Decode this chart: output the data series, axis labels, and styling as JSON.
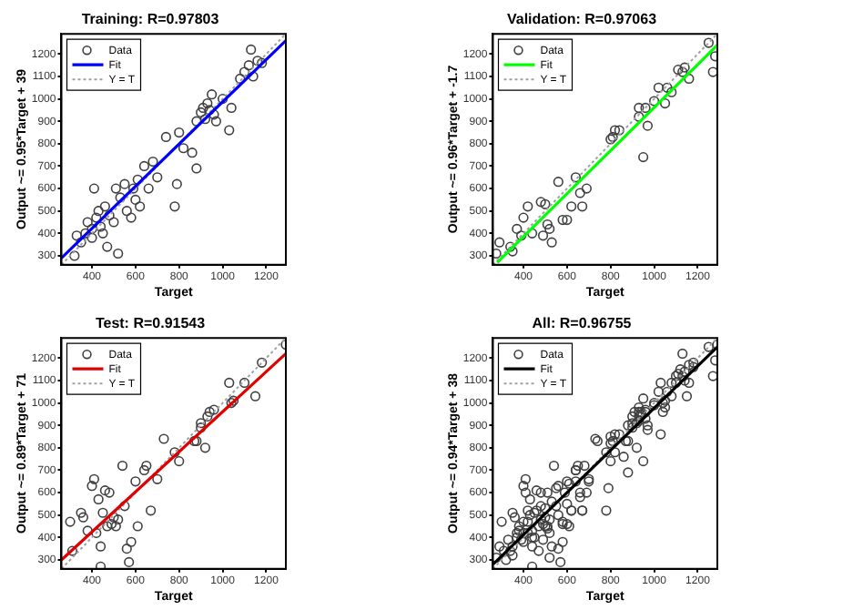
{
  "chart_data": [
    {
      "type": "scatter",
      "title": "Training: R=0.97803",
      "xlabel": "Target",
      "ylabel": "Output ~= 0.95*Target + 39",
      "xlim": [
        260,
        1290
      ],
      "ylim": [
        260,
        1290
      ],
      "xticks": [
        400,
        600,
        800,
        1000,
        1200
      ],
      "yticks": [
        300,
        400,
        500,
        600,
        700,
        800,
        900,
        1000,
        1100,
        1200
      ],
      "legend": "top left",
      "series": [
        {
          "name": "Data",
          "type": "scatter",
          "marker": "circle",
          "color": "#404040",
          "x": [
            320,
            330,
            350,
            370,
            380,
            400,
            400,
            410,
            420,
            430,
            440,
            450,
            460,
            470,
            480,
            500,
            510,
            520,
            530,
            550,
            560,
            580,
            590,
            600,
            610,
            620,
            640,
            660,
            680,
            700,
            740,
            780,
            790,
            800,
            820,
            860,
            880,
            880,
            900,
            910,
            920,
            930,
            940,
            950,
            960,
            970,
            1000,
            1030,
            1040,
            1080,
            1100,
            1120,
            1130,
            1140,
            1160,
            1180
          ],
          "values": [
            300,
            390,
            360,
            400,
            450,
            420,
            380,
            600,
            470,
            500,
            430,
            400,
            520,
            340,
            480,
            450,
            600,
            310,
            560,
            620,
            500,
            470,
            600,
            550,
            640,
            520,
            700,
            600,
            720,
            650,
            830,
            520,
            620,
            850,
            780,
            760,
            690,
            900,
            940,
            960,
            910,
            980,
            950,
            1020,
            930,
            900,
            1000,
            860,
            960,
            1090,
            1120,
            1150,
            1220,
            1100,
            1170,
            1160
          ]
        },
        {
          "name": "Fit",
          "type": "line",
          "color": "#0000ff",
          "line_style": "solid",
          "x": [
            260,
            1290
          ],
          "values": [
            290,
            1260
          ]
        },
        {
          "name": "Y = T",
          "type": "line",
          "color": "#a0a0a0",
          "line_style": "dotted",
          "x": [
            260,
            1290
          ],
          "values": [
            260,
            1290
          ]
        }
      ]
    },
    {
      "type": "scatter",
      "title": "Validation: R=0.97063",
      "xlabel": "Target",
      "ylabel": "Output ~= 0.96*Target + -1.7",
      "xlim": [
        260,
        1290
      ],
      "ylim": [
        260,
        1290
      ],
      "xticks": [
        400,
        600,
        800,
        1000,
        1200
      ],
      "yticks": [
        300,
        400,
        500,
        600,
        700,
        800,
        900,
        1000,
        1100,
        1200
      ],
      "legend": "top left",
      "series": [
        {
          "name": "Data",
          "type": "scatter",
          "marker": "circle",
          "color": "#404040",
          "x": [
            275,
            290,
            340,
            350,
            370,
            390,
            400,
            420,
            440,
            480,
            490,
            500,
            510,
            520,
            530,
            560,
            580,
            600,
            620,
            640,
            660,
            670,
            690,
            800,
            810,
            820,
            840,
            930,
            930,
            950,
            960,
            970,
            1000,
            1020,
            1050,
            1060,
            1080,
            1110,
            1130,
            1140,
            1160,
            1250,
            1270,
            1280
          ],
          "values": [
            310,
            360,
            340,
            320,
            420,
            390,
            470,
            520,
            400,
            540,
            390,
            530,
            440,
            420,
            360,
            630,
            460,
            460,
            520,
            650,
            580,
            520,
            600,
            820,
            830,
            860,
            860,
            920,
            960,
            740,
            960,
            880,
            990,
            1050,
            980,
            1050,
            1030,
            1130,
            1120,
            1140,
            1090,
            1250,
            1120,
            1190
          ]
        },
        {
          "name": "Fit",
          "type": "line",
          "color": "#00ff00",
          "line_style": "solid",
          "x": [
            280,
            1290
          ],
          "values": [
            270,
            1240
          ]
        },
        {
          "name": "Y = T",
          "type": "line",
          "color": "#a0a0a0",
          "line_style": "dotted",
          "x": [
            260,
            1290
          ],
          "values": [
            260,
            1290
          ]
        }
      ]
    },
    {
      "type": "scatter",
      "title": "Test: R=0.91543",
      "xlabel": "Target",
      "ylabel": "Output ~= 0.89*Target + 71",
      "xlim": [
        260,
        1290
      ],
      "ylim": [
        260,
        1290
      ],
      "xticks": [
        400,
        600,
        800,
        1000,
        1200
      ],
      "yticks": [
        300,
        400,
        500,
        600,
        700,
        800,
        900,
        1000,
        1100,
        1200
      ],
      "legend": "top left",
      "series": [
        {
          "name": "Data",
          "type": "scatter",
          "marker": "circle",
          "color": "#404040",
          "x": [
            300,
            310,
            350,
            360,
            380,
            400,
            410,
            420,
            430,
            440,
            440,
            450,
            460,
            470,
            480,
            490,
            500,
            510,
            520,
            540,
            550,
            560,
            570,
            580,
            600,
            610,
            640,
            650,
            670,
            700,
            730,
            780,
            800,
            870,
            880,
            900,
            900,
            920,
            930,
            940,
            960,
            1030,
            1040,
            1050,
            1100,
            1150,
            1180,
            1290
          ],
          "values": [
            470,
            340,
            510,
            490,
            430,
            630,
            660,
            420,
            570,
            360,
            270,
            510,
            610,
            450,
            600,
            460,
            490,
            450,
            480,
            720,
            540,
            350,
            290,
            380,
            650,
            450,
            700,
            720,
            520,
            660,
            840,
            780,
            740,
            830,
            830,
            890,
            910,
            800,
            940,
            960,
            970,
            1090,
            1000,
            1010,
            1090,
            1030,
            1180,
            1260
          ]
        },
        {
          "name": "Fit",
          "type": "line",
          "color": "#e00000",
          "line_style": "solid",
          "x": [
            260,
            1290
          ],
          "values": [
            300,
            1220
          ]
        },
        {
          "name": "Y = T",
          "type": "line",
          "color": "#a0a0a0",
          "line_style": "dotted",
          "x": [
            260,
            1290
          ],
          "values": [
            260,
            1290
          ]
        }
      ]
    },
    {
      "type": "scatter",
      "title": "All: R=0.96755",
      "xlabel": "Target",
      "ylabel": "Output ~= 0.94*Target + 38",
      "xlim": [
        260,
        1290
      ],
      "ylim": [
        260,
        1290
      ],
      "xticks": [
        400,
        600,
        800,
        1000,
        1200
      ],
      "yticks": [
        300,
        400,
        500,
        600,
        700,
        800,
        900,
        1000,
        1100,
        1200
      ],
      "legend": "top left",
      "series": [
        {
          "name": "Data",
          "type": "scatter",
          "marker": "circle",
          "color": "#404040",
          "x": [
            320,
            330,
            350,
            370,
            380,
            400,
            400,
            410,
            420,
            430,
            440,
            450,
            460,
            470,
            480,
            500,
            510,
            520,
            530,
            550,
            560,
            580,
            590,
            600,
            610,
            620,
            640,
            660,
            680,
            700,
            740,
            780,
            790,
            800,
            820,
            860,
            880,
            880,
            900,
            910,
            920,
            930,
            940,
            950,
            960,
            970,
            1000,
            1030,
            1040,
            1080,
            1100,
            1120,
            1130,
            1140,
            1160,
            1180,
            275,
            290,
            340,
            350,
            370,
            390,
            400,
            420,
            440,
            480,
            490,
            500,
            510,
            520,
            530,
            560,
            580,
            600,
            620,
            640,
            660,
            670,
            690,
            800,
            810,
            820,
            840,
            930,
            930,
            950,
            960,
            970,
            1000,
            1020,
            1050,
            1060,
            1080,
            1110,
            1130,
            1140,
            1160,
            1250,
            1270,
            1280,
            300,
            310,
            350,
            360,
            380,
            400,
            410,
            420,
            430,
            440,
            440,
            450,
            460,
            470,
            480,
            490,
            500,
            510,
            520,
            540,
            550,
            560,
            570,
            580,
            600,
            610,
            640,
            650,
            670,
            700,
            730,
            780,
            800,
            870,
            880,
            900,
            900,
            920,
            930,
            940,
            960,
            1030,
            1040,
            1050,
            1100,
            1150,
            1180,
            1290
          ],
          "values": [
            300,
            390,
            360,
            400,
            450,
            420,
            380,
            600,
            470,
            500,
            430,
            400,
            520,
            340,
            480,
            450,
            600,
            310,
            560,
            620,
            500,
            470,
            600,
            550,
            640,
            520,
            700,
            600,
            720,
            650,
            830,
            520,
            620,
            850,
            780,
            760,
            690,
            900,
            940,
            960,
            910,
            980,
            950,
            1020,
            930,
            900,
            1000,
            860,
            960,
            1090,
            1120,
            1150,
            1220,
            1100,
            1170,
            1160,
            310,
            360,
            340,
            320,
            420,
            390,
            470,
            520,
            400,
            540,
            390,
            530,
            440,
            420,
            360,
            630,
            460,
            460,
            520,
            650,
            580,
            520,
            600,
            820,
            830,
            860,
            860,
            920,
            960,
            740,
            960,
            880,
            990,
            1050,
            980,
            1050,
            1030,
            1130,
            1120,
            1140,
            1090,
            1250,
            1120,
            1190,
            470,
            340,
            510,
            490,
            430,
            630,
            660,
            420,
            570,
            360,
            270,
            510,
            610,
            450,
            600,
            460,
            490,
            450,
            480,
            720,
            540,
            350,
            290,
            380,
            650,
            450,
            700,
            720,
            520,
            660,
            840,
            780,
            740,
            830,
            830,
            890,
            910,
            800,
            940,
            960,
            970,
            1090,
            1000,
            1010,
            1090,
            1030,
            1180,
            1260
          ]
        },
        {
          "name": "Fit",
          "type": "line",
          "color": "#000000",
          "line_style": "solid",
          "x": [
            260,
            1290
          ],
          "values": [
            280,
            1250
          ]
        },
        {
          "name": "Y = T",
          "type": "line",
          "color": "#a0a0a0",
          "line_style": "dotted",
          "x": [
            260,
            1290
          ],
          "values": [
            260,
            1290
          ]
        }
      ]
    }
  ]
}
